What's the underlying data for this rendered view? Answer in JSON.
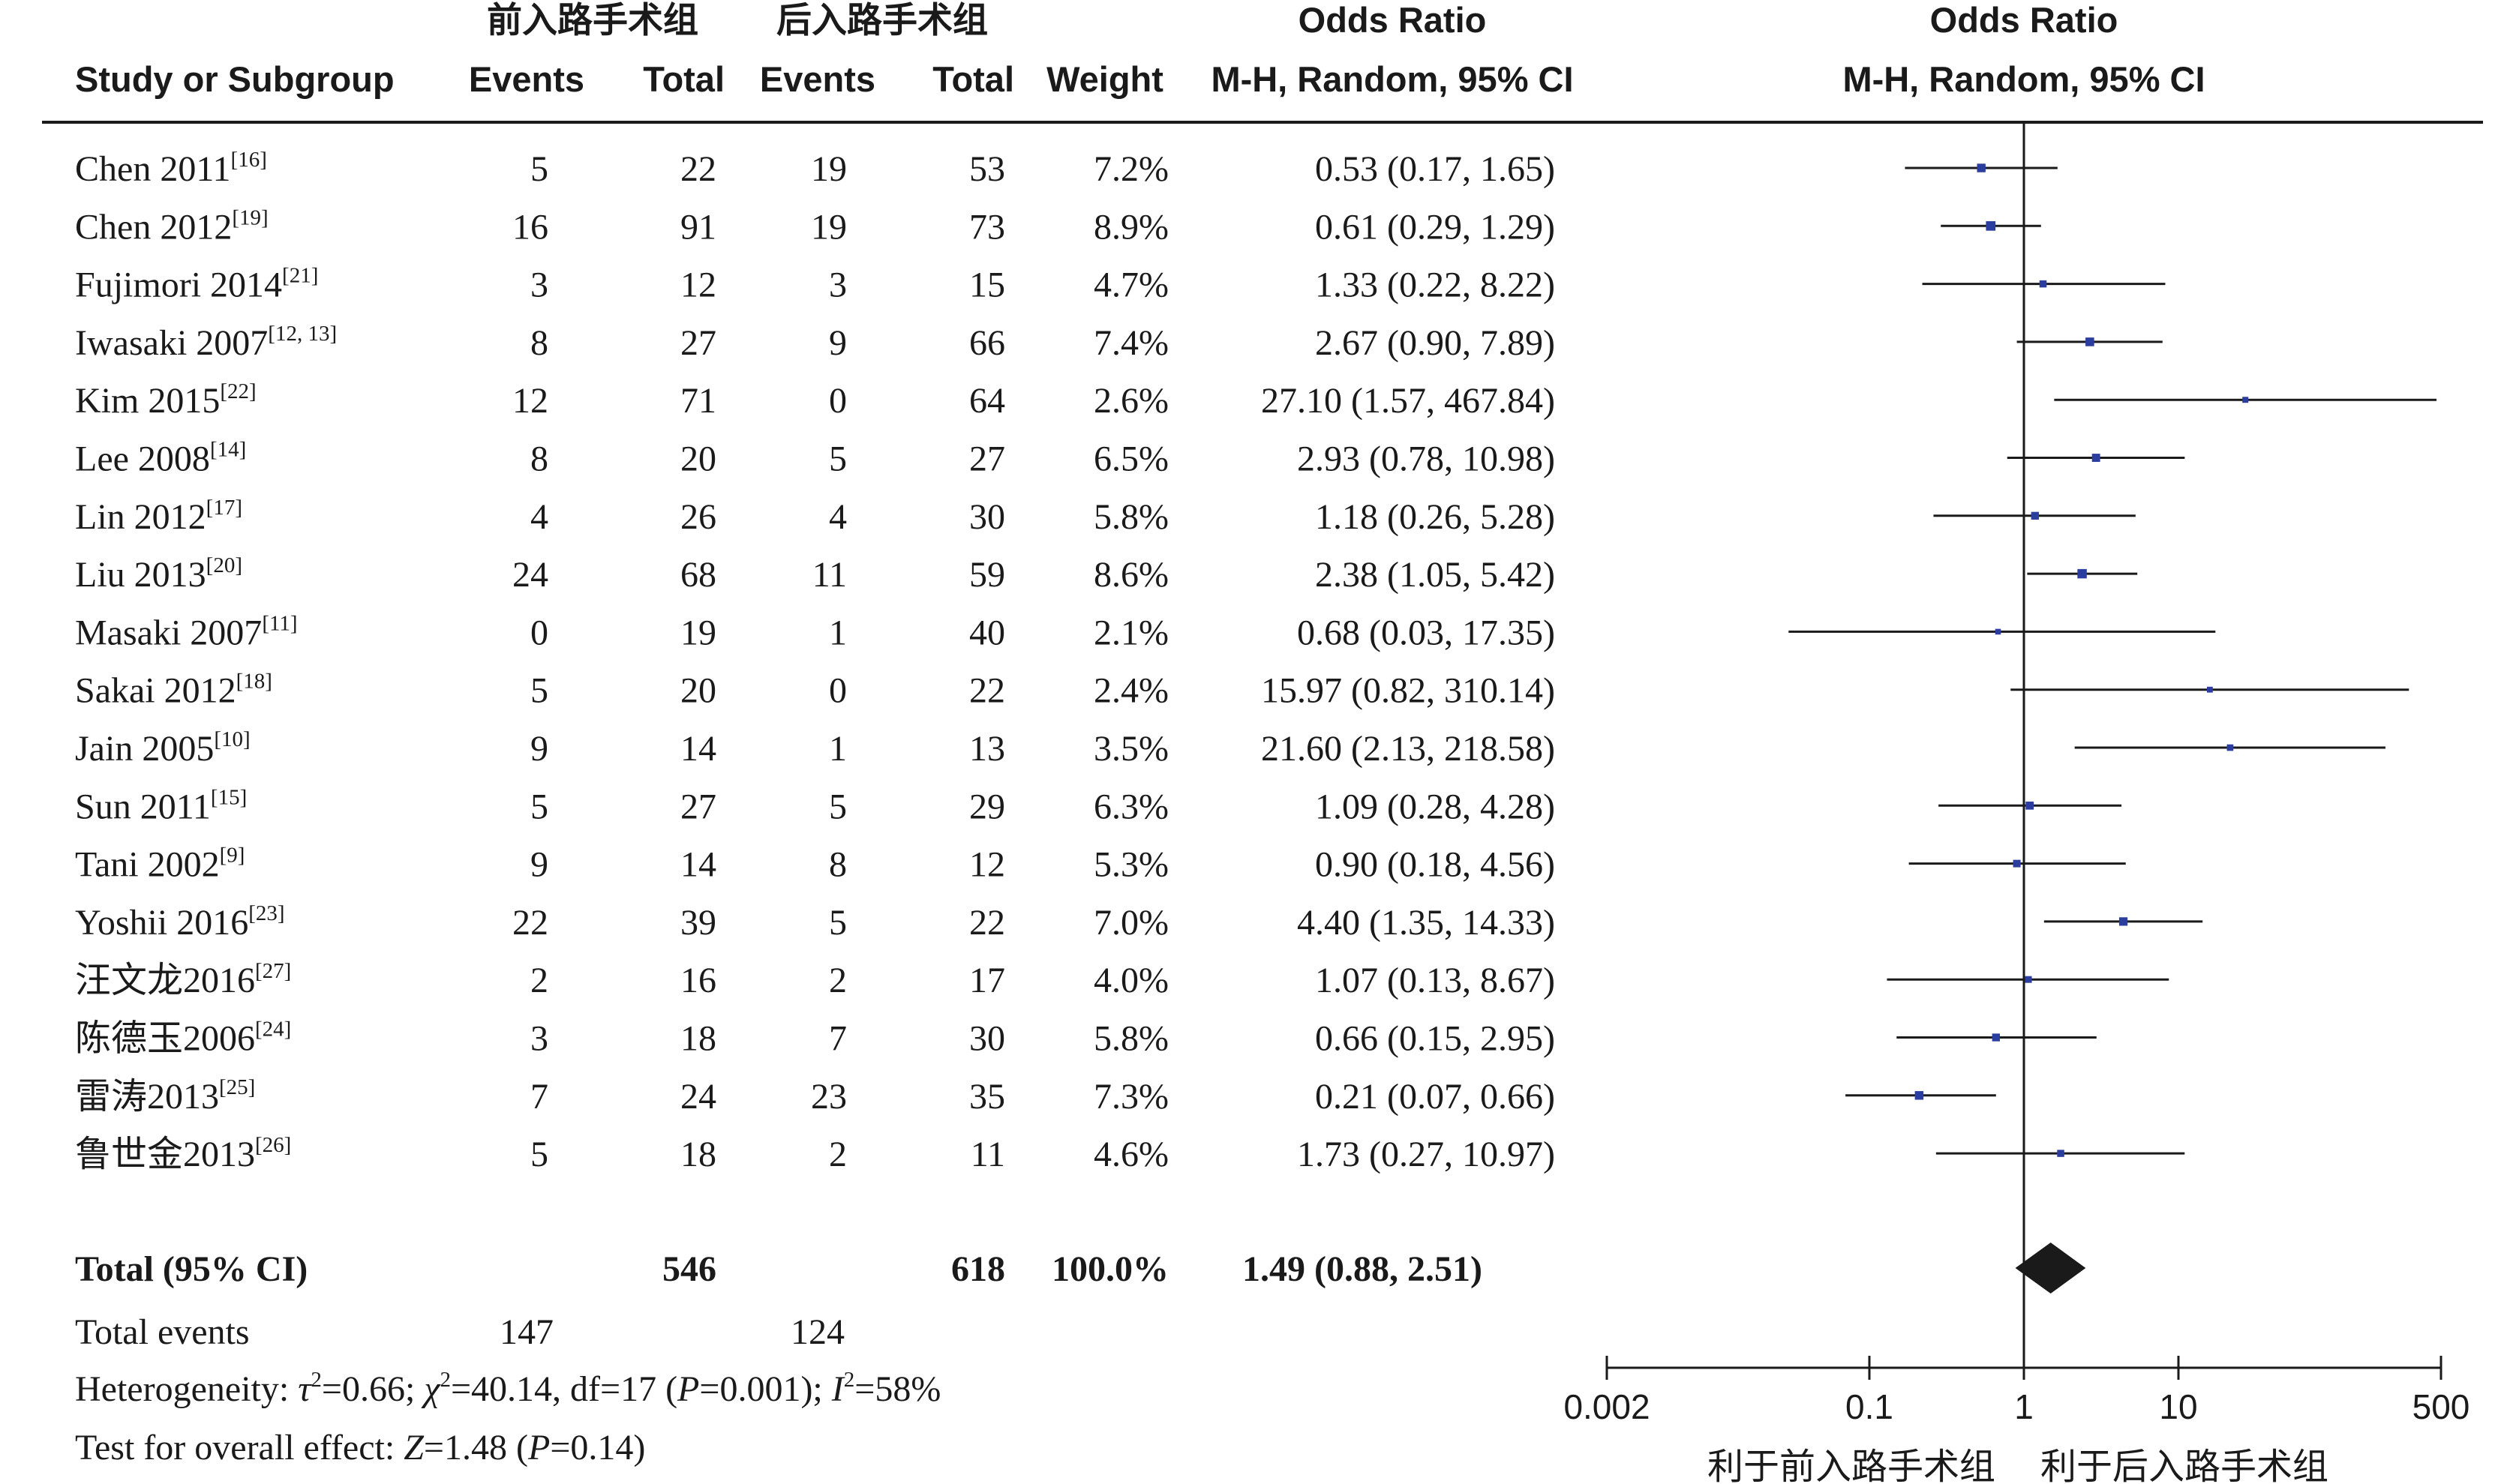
{
  "chart_data": {
    "type": "forest",
    "headers": {
      "group1": "前入路手术组",
      "group2": "后入路手术组",
      "odds_ratio_col": "Odds Ratio",
      "odds_ratio_plot": "Odds Ratio",
      "study": "Study or Subgroup",
      "events1": "Events",
      "total1": "Total",
      "events2": "Events",
      "total2": "Total",
      "weight": "Weight",
      "method_col": "M-H, Random, 95% CI",
      "method_plot": "M-H, Random, 95% CI"
    },
    "studies": [
      {
        "name": "Chen 2011",
        "ref": "[16]",
        "e1": "5",
        "t1": "22",
        "e2": "19",
        "t2": "53",
        "weight": "7.2%",
        "or_text": "0.53 (0.17, 1.65)",
        "or": 0.53,
        "lo": 0.17,
        "hi": 1.65
      },
      {
        "name": "Chen 2012",
        "ref": "[19]",
        "e1": "16",
        "t1": "91",
        "e2": "19",
        "t2": "73",
        "weight": "8.9%",
        "or_text": "0.61 (0.29, 1.29)",
        "or": 0.61,
        "lo": 0.29,
        "hi": 1.29
      },
      {
        "name": "Fujimori 2014",
        "ref": "[21]",
        "e1": "3",
        "t1": "12",
        "e2": "3",
        "t2": "15",
        "weight": "4.7%",
        "or_text": "1.33 (0.22, 8.22)",
        "or": 1.33,
        "lo": 0.22,
        "hi": 8.22
      },
      {
        "name": "Iwasaki 2007",
        "ref": "[12, 13]",
        "e1": "8",
        "t1": "27",
        "e2": "9",
        "t2": "66",
        "weight": "7.4%",
        "or_text": "2.67 (0.90, 7.89)",
        "or": 2.67,
        "lo": 0.9,
        "hi": 7.89
      },
      {
        "name": "Kim 2015",
        "ref": "[22]",
        "e1": "12",
        "t1": "71",
        "e2": "0",
        "t2": "64",
        "weight": "2.6%",
        "or_text": "27.10 (1.57, 467.84)",
        "or": 27.1,
        "lo": 1.57,
        "hi": 467.84
      },
      {
        "name": "Lee 2008",
        "ref": "[14]",
        "e1": "8",
        "t1": "20",
        "e2": "5",
        "t2": "27",
        "weight": "6.5%",
        "or_text": "2.93 (0.78, 10.98)",
        "or": 2.93,
        "lo": 0.78,
        "hi": 10.98
      },
      {
        "name": "Lin 2012",
        "ref": "[17]",
        "e1": "4",
        "t1": "26",
        "e2": "4",
        "t2": "30",
        "weight": "5.8%",
        "or_text": "1.18 (0.26, 5.28)",
        "or": 1.18,
        "lo": 0.26,
        "hi": 5.28
      },
      {
        "name": "Liu 2013",
        "ref": "[20]",
        "e1": "24",
        "t1": "68",
        "e2": "11",
        "t2": "59",
        "weight": "8.6%",
        "or_text": "2.38 (1.05, 5.42)",
        "or": 2.38,
        "lo": 1.05,
        "hi": 5.42
      },
      {
        "name": "Masaki 2007",
        "ref": "[11]",
        "e1": "0",
        "t1": "19",
        "e2": "1",
        "t2": "40",
        "weight": "2.1%",
        "or_text": "0.68 (0.03, 17.35)",
        "or": 0.68,
        "lo": 0.03,
        "hi": 17.35
      },
      {
        "name": "Sakai 2012",
        "ref": "[18]",
        "e1": "5",
        "t1": "20",
        "e2": "0",
        "t2": "22",
        "weight": "2.4%",
        "or_text": "15.97 (0.82, 310.14)",
        "or": 15.97,
        "lo": 0.82,
        "hi": 310.14
      },
      {
        "name": "Jain 2005",
        "ref": "[10]",
        "e1": "9",
        "t1": "14",
        "e2": "1",
        "t2": "13",
        "weight": "3.5%",
        "or_text": "21.60 (2.13, 218.58)",
        "or": 21.6,
        "lo": 2.13,
        "hi": 218.58
      },
      {
        "name": "Sun 2011",
        "ref": "[15]",
        "e1": "5",
        "t1": "27",
        "e2": "5",
        "t2": "29",
        "weight": "6.3%",
        "or_text": "1.09 (0.28, 4.28)",
        "or": 1.09,
        "lo": 0.28,
        "hi": 4.28
      },
      {
        "name": "Tani 2002",
        "ref": "[9]",
        "e1": "9",
        "t1": "14",
        "e2": "8",
        "t2": "12",
        "weight": "5.3%",
        "or_text": "0.90 (0.18, 4.56)",
        "or": 0.9,
        "lo": 0.18,
        "hi": 4.56
      },
      {
        "name": "Yoshii 2016",
        "ref": "[23]",
        "e1": "22",
        "t1": "39",
        "e2": "5",
        "t2": "22",
        "weight": "7.0%",
        "or_text": "4.40 (1.35, 14.33)",
        "or": 4.4,
        "lo": 1.35,
        "hi": 14.33
      },
      {
        "name": "汪文龙2016",
        "ref": "[27]",
        "e1": "2",
        "t1": "16",
        "e2": "2",
        "t2": "17",
        "weight": "4.0%",
        "or_text": "1.07 (0.13, 8.67)",
        "or": 1.07,
        "lo": 0.13,
        "hi": 8.67
      },
      {
        "name": "陈德玉2006",
        "ref": "[24]",
        "e1": "3",
        "t1": "18",
        "e2": "7",
        "t2": "30",
        "weight": "5.8%",
        "or_text": "0.66 (0.15, 2.95)",
        "or": 0.66,
        "lo": 0.15,
        "hi": 2.95
      },
      {
        "name": "雷涛2013",
        "ref": "[25]",
        "e1": "7",
        "t1": "24",
        "e2": "23",
        "t2": "35",
        "weight": "7.3%",
        "or_text": "0.21 (0.07, 0.66)",
        "or": 0.21,
        "lo": 0.07,
        "hi": 0.66
      },
      {
        "name": "鲁世金2013",
        "ref": "[26]",
        "e1": "5",
        "t1": "18",
        "e2": "2",
        "t2": "11",
        "weight": "4.6%",
        "or_text": "1.73 (0.27, 10.97)",
        "or": 1.73,
        "lo": 0.27,
        "hi": 10.97
      }
    ],
    "total": {
      "label": "Total (95% CI)",
      "t1": "546",
      "t2": "618",
      "weight": "100.0%",
      "or_text": "1.49 (0.88, 2.51)",
      "or": 1.49,
      "lo": 0.88,
      "hi": 2.51
    },
    "total_events": {
      "label": "Total events",
      "e1": "147",
      "e2": "124"
    },
    "heterogeneity": {
      "label": "Heterogeneity: ",
      "tau_sym": "τ",
      "tau_val": "=0.66; ",
      "chi_sym": "χ",
      "chi_val": "=40.14, df=17 (",
      "p_sym": "P",
      "p_val": "=0.001); ",
      "i_sym": "I",
      "i_val": "=58%",
      "sq": "2"
    },
    "overall": {
      "label": "Test for overall effect: ",
      "z_sym": "Z",
      "z_val": "=1.48 (",
      "p_sym": "P",
      "p_val": "=0.14)"
    },
    "x_axis": {
      "scale": "log",
      "range": [
        0.002,
        500
      ],
      "ticks": [
        0.002,
        0.1,
        1,
        10,
        500
      ],
      "tick_labels": [
        "0.002",
        "0.1",
        "1",
        "10",
        "500"
      ]
    },
    "favours": {
      "left": "利于前入路手术组",
      "right": "利于后入路手术组"
    },
    "colors": {
      "marker": "#2b3d9e",
      "line": "#1a1a1a",
      "diamond": "#1a1a1a"
    }
  }
}
